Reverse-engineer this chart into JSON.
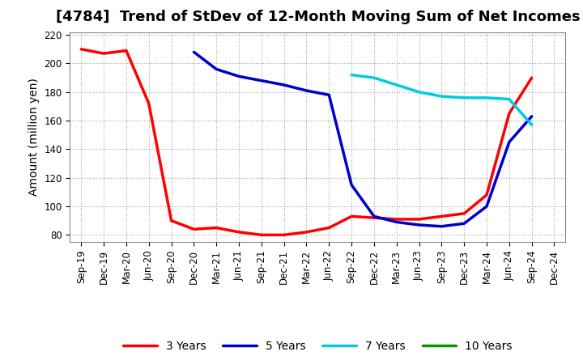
{
  "title": "[4784]  Trend of StDev of 12-Month Moving Sum of Net Incomes",
  "ylabel": "Amount (million yen)",
  "background_color": "#ffffff",
  "grid_color": "#999999",
  "title_fontsize": 13,
  "axis_label_fontsize": 10,
  "tick_fontsize": 8.5,
  "legend_fontsize": 10,
  "xtick_labels": [
    "Sep-19",
    "Dec-19",
    "Mar-20",
    "Jun-20",
    "Sep-20",
    "Dec-20",
    "Mar-21",
    "Jun-21",
    "Sep-21",
    "Dec-21",
    "Mar-22",
    "Jun-22",
    "Sep-22",
    "Dec-22",
    "Mar-23",
    "Jun-23",
    "Sep-23",
    "Dec-23",
    "Mar-24",
    "Jun-24",
    "Sep-24",
    "Dec-24"
  ],
  "ylim": [
    75,
    222
  ],
  "yticks": [
    80,
    100,
    120,
    140,
    160,
    180,
    200,
    220
  ],
  "series": [
    {
      "name": "3 Years",
      "color": "#ff0000",
      "x_indices": [
        0,
        1,
        2,
        3,
        4,
        5,
        6,
        7,
        8,
        9,
        10,
        11,
        12,
        13,
        14,
        15,
        16,
        17,
        18,
        19,
        20
      ],
      "values": [
        210,
        207,
        209,
        172,
        90,
        84,
        85,
        82,
        80,
        80,
        82,
        85,
        93,
        92,
        91,
        91,
        93,
        95,
        108,
        165,
        190
      ]
    },
    {
      "name": "5 Years",
      "color": "#0000cc",
      "x_indices": [
        5,
        6,
        7,
        8,
        9,
        10,
        11,
        12,
        13,
        14,
        15,
        16,
        17,
        18,
        19,
        20
      ],
      "values": [
        208,
        196,
        191,
        188,
        185,
        181,
        178,
        115,
        93,
        89,
        87,
        86,
        88,
        100,
        145,
        163
      ]
    },
    {
      "name": "7 Years",
      "color": "#00ccdd",
      "x_indices": [
        12,
        13,
        14,
        15,
        16,
        17,
        18,
        19,
        20
      ],
      "values": [
        192,
        190,
        185,
        180,
        177,
        176,
        176,
        175,
        157
      ]
    },
    {
      "name": "10 Years",
      "color": "#009900",
      "x_indices": [],
      "values": []
    }
  ]
}
